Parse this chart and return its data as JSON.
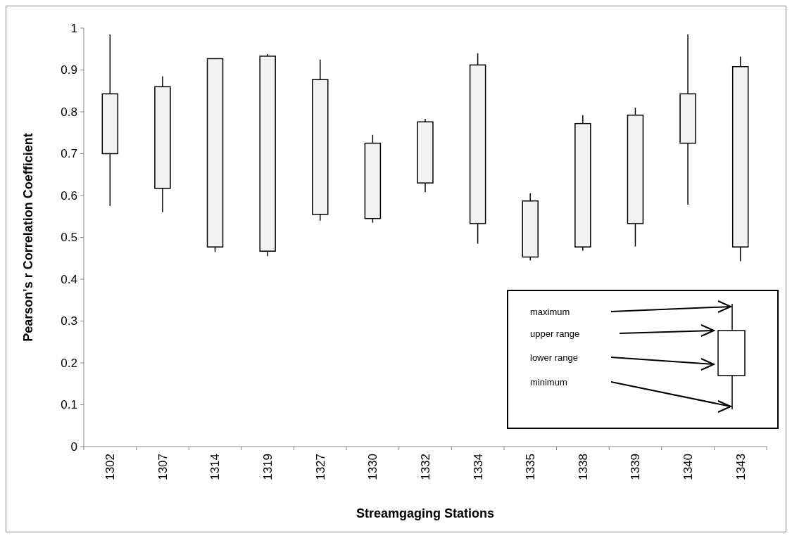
{
  "chart_data": {
    "type": "bar",
    "xlabel": "Streamgaging Stations",
    "ylabel": "Pearson's r Correlation Coefficient",
    "categories": [
      "1302",
      "1307",
      "1314",
      "1319",
      "1327",
      "1330",
      "1332",
      "1334",
      "1335",
      "1338",
      "1339",
      "1340",
      "1343"
    ],
    "base": [
      0.7,
      0.617,
      0.477,
      0.467,
      0.555,
      0.545,
      0.63,
      0.533,
      0.453,
      0.477,
      0.533,
      0.725,
      0.477
    ],
    "values": [
      0.143,
      0.243,
      0.45,
      0.466,
      0.322,
      0.18,
      0.146,
      0.379,
      0.134,
      0.295,
      0.259,
      0.118,
      0.431
    ],
    "errors": [
      [
        0.575,
        0.985
      ],
      [
        0.56,
        0.885
      ],
      [
        0.465,
        0.928
      ],
      [
        0.455,
        0.938
      ],
      [
        0.54,
        0.925
      ],
      [
        0.535,
        0.745
      ],
      [
        0.608,
        0.783
      ],
      [
        0.485,
        0.94
      ],
      [
        0.445,
        0.605
      ],
      [
        0.468,
        0.792
      ],
      [
        0.478,
        0.81
      ],
      [
        0.578,
        0.985
      ],
      [
        0.443,
        0.932
      ]
    ],
    "color": "#f2f2f2",
    "ylim": [
      0,
      1
    ],
    "yticks": [
      0,
      0.1,
      0.2,
      0.3,
      0.4,
      0.5,
      0.6,
      0.7,
      0.8,
      0.9,
      1
    ],
    "grid": false,
    "annotations": [
      "maximum",
      "upper range",
      "lower range",
      "minimum"
    ]
  }
}
